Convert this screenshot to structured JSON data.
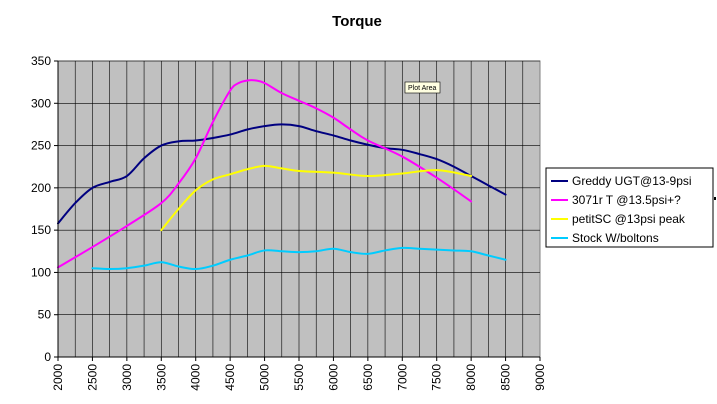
{
  "chart_data": {
    "type": "line",
    "title": "Torque",
    "xlabel": "",
    "ylabel": "",
    "xlim": [
      2000,
      9000
    ],
    "ylim": [
      0,
      350
    ],
    "yticks": [
      0,
      50,
      100,
      150,
      200,
      250,
      300,
      350
    ],
    "xticks": [
      2000,
      2500,
      3000,
      3500,
      4000,
      4500,
      5000,
      5500,
      6000,
      6500,
      7000,
      7500,
      8000,
      8500,
      9000
    ],
    "grid": true,
    "legend_position": "right",
    "plot_background": "#c0c0c0",
    "gridline_color": "#000000",
    "series": [
      {
        "name": "Greddy UGT@13-9psi",
        "color": "#000080",
        "x": [
          2000,
          2250,
          2500,
          2750,
          3000,
          3250,
          3500,
          3750,
          4000,
          4250,
          4500,
          4750,
          5000,
          5250,
          5500,
          5750,
          6000,
          6250,
          6500,
          6750,
          7000,
          7250,
          7500,
          7750,
          8000,
          8250,
          8500
        ],
        "y": [
          158,
          182,
          200,
          207,
          214,
          235,
          250,
          255,
          256,
          259,
          263,
          269,
          273,
          275,
          273,
          267,
          262,
          256,
          251,
          247,
          245,
          240,
          234,
          225,
          214,
          203,
          192
        ]
      },
      {
        "name": "3071r T @13.5psi+?",
        "color": "#ff00ff",
        "x": [
          2000,
          2500,
          3000,
          3500,
          3750,
          4000,
          4250,
          4500,
          4625,
          4750,
          4875,
          5000,
          5250,
          5500,
          5750,
          6000,
          6250,
          6500,
          7000,
          7500,
          8000
        ],
        "y": [
          106,
          130,
          155,
          182,
          205,
          235,
          278,
          315,
          324,
          327,
          327,
          324,
          312,
          303,
          294,
          283,
          269,
          256,
          237,
          212,
          184
        ]
      },
      {
        "name": "petitSC @13psi peak",
        "color": "#ffff00",
        "x": [
          3500,
          3750,
          4000,
          4250,
          4500,
          4750,
          5000,
          5250,
          5500,
          6000,
          6500,
          7000,
          7500,
          8000
        ],
        "y": [
          150,
          175,
          197,
          210,
          216,
          222,
          226,
          223,
          220,
          218,
          214,
          217,
          221,
          214
        ]
      },
      {
        "name": "Stock W/boltons",
        "color": "#00ccff",
        "x": [
          2500,
          2750,
          3000,
          3250,
          3500,
          3750,
          4000,
          4250,
          4500,
          4750,
          5000,
          5250,
          5500,
          5750,
          6000,
          6250,
          6500,
          6750,
          7000,
          7250,
          7500,
          7750,
          8000,
          8250,
          8500
        ],
        "y": [
          105,
          104,
          105,
          108,
          112,
          107,
          104,
          108,
          115,
          120,
          126,
          125,
          124,
          125,
          128,
          124,
          122,
          126,
          129,
          128,
          127,
          126,
          125,
          120,
          115
        ]
      }
    ],
    "annotations": [
      "Plot Area"
    ]
  }
}
